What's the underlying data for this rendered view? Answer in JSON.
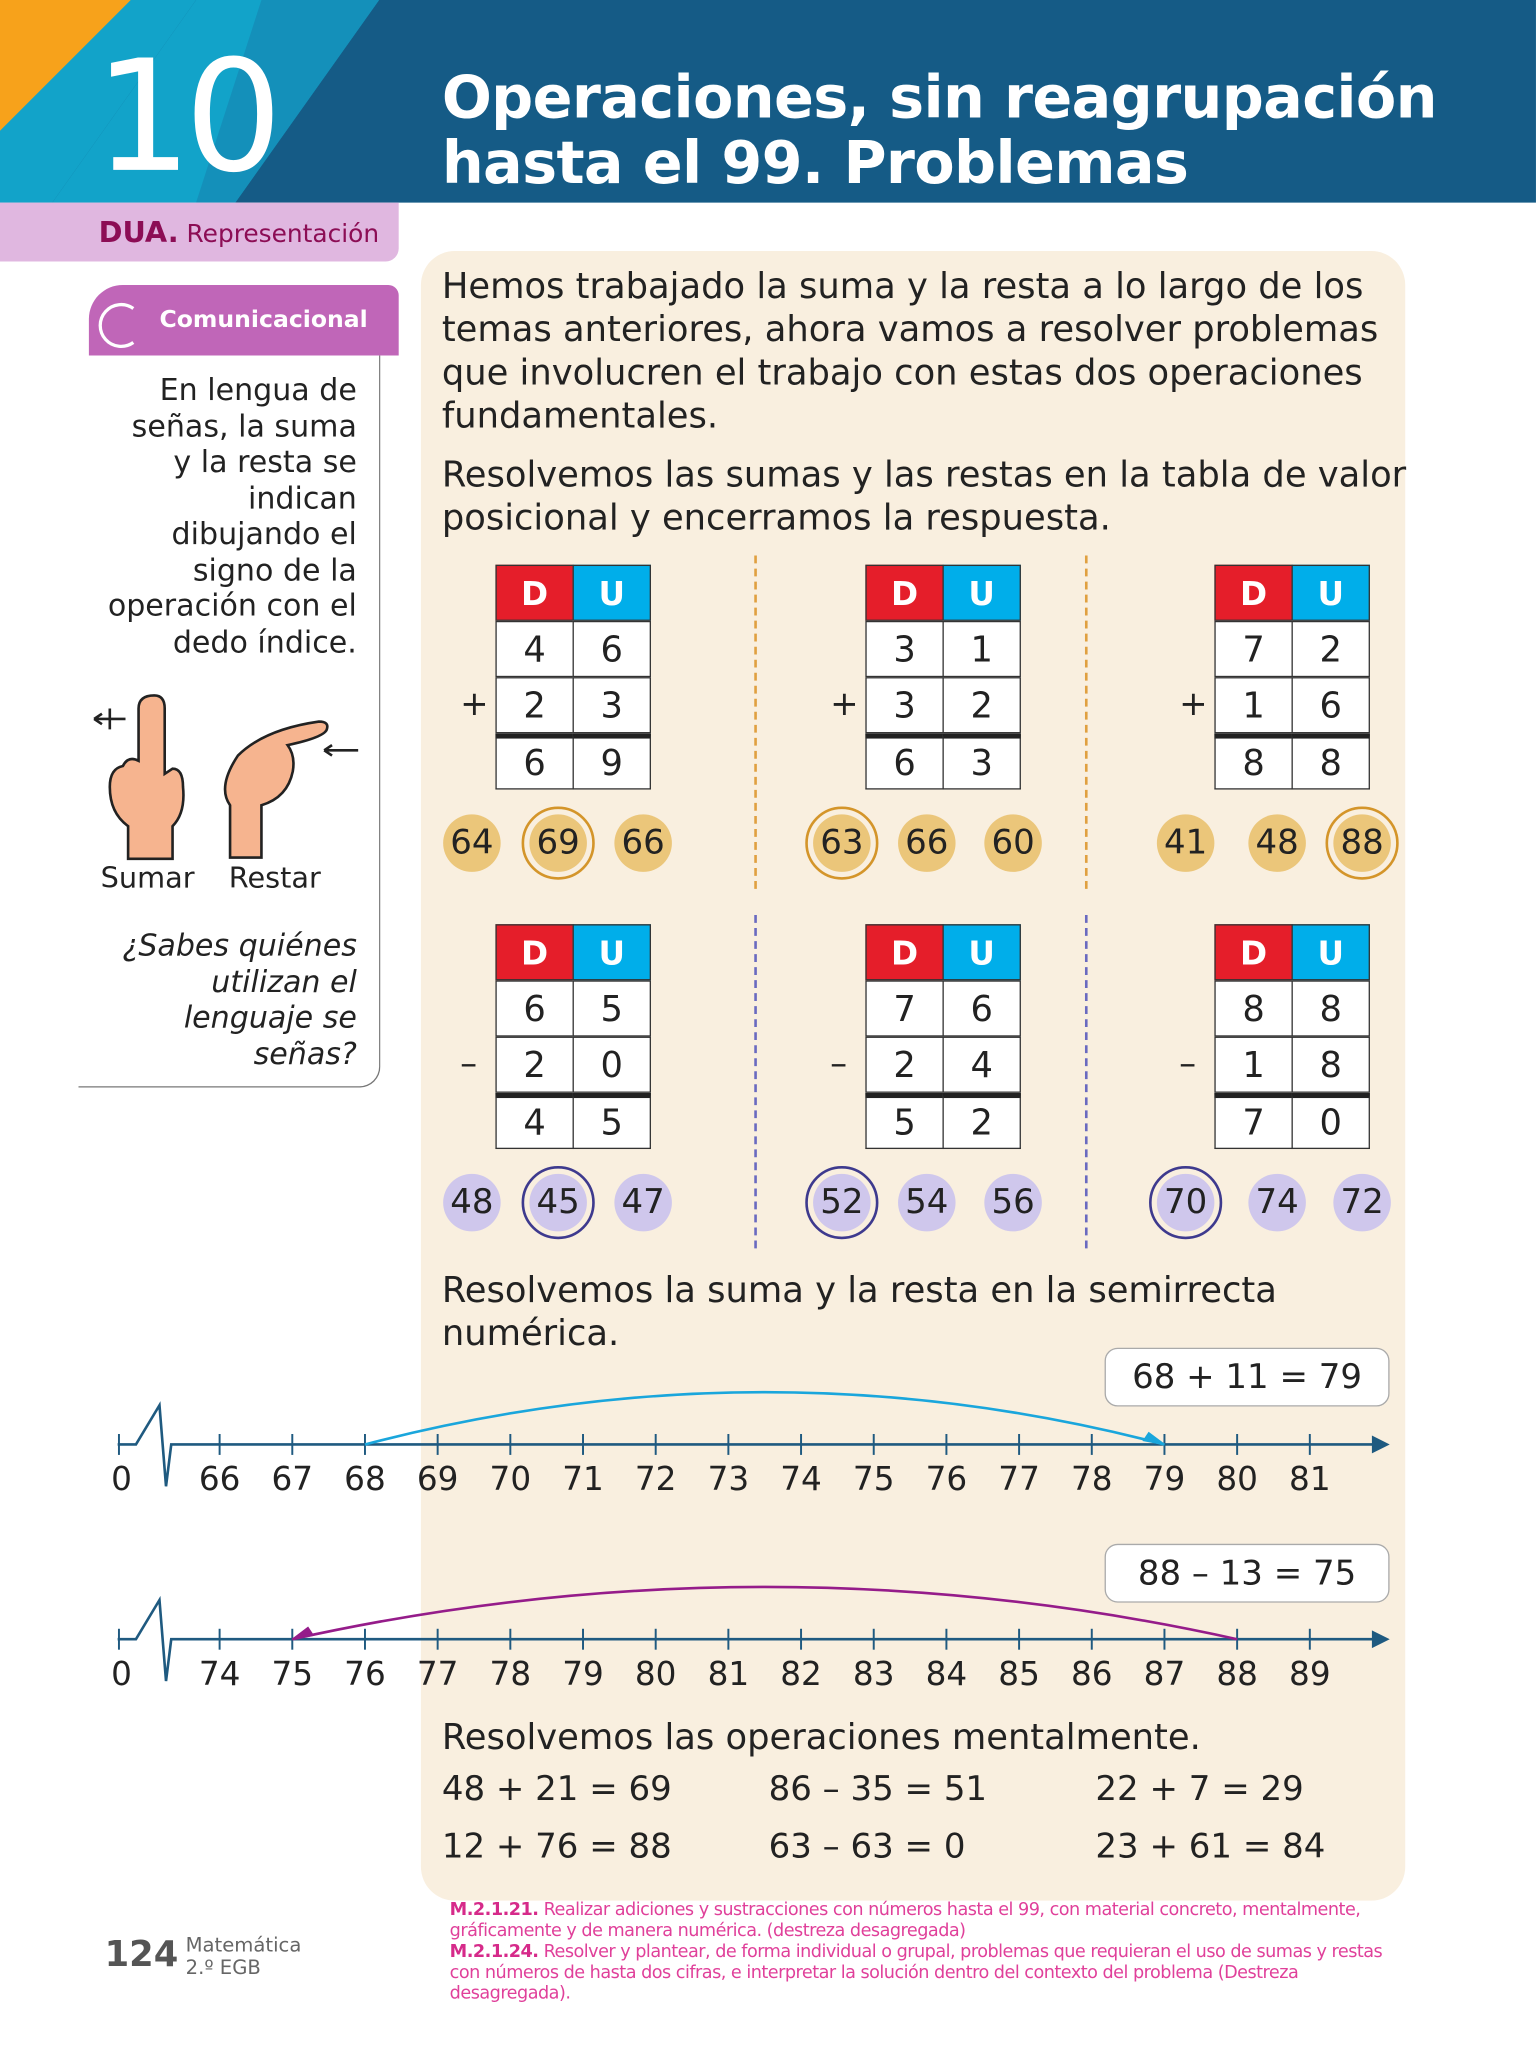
{
  "header": {
    "chapter_number": "10",
    "title_line1": "Operaciones, sin reagrupación",
    "title_line2": "hasta el 99. Problemas"
  },
  "dua": {
    "prefix": "DUA.",
    "label": "Representación"
  },
  "sidebar": {
    "tab_label": "Comunicacional",
    "text_lines": [
      "En lengua de",
      "señas, la suma",
      "y la resta se",
      "indican",
      "dibujando el",
      "signo de la",
      "operación con el",
      "dedo índice."
    ],
    "sign_labels": [
      "Sumar",
      "Restar"
    ],
    "question_lines": [
      "¿Sabes quiénes",
      "utilizan el",
      "lenguaje se",
      "señas?"
    ]
  },
  "intro": {
    "lines": [
      "Hemos trabajado la suma y la resta a lo largo de los",
      "temas anteriores, ahora vamos a resolver problemas",
      "que involucren el trabajo con estas dos operaciones",
      "fundamentales."
    ]
  },
  "instruction1": {
    "lines": [
      "Resolvemos las sumas y las restas en la tabla de valor",
      "posicional y encerramos la respuesta."
    ]
  },
  "table_headers": {
    "d": "D",
    "u": "U"
  },
  "operations": [
    {
      "op": "+",
      "a": [
        "4",
        "6"
      ],
      "b": [
        "2",
        "3"
      ],
      "r": [
        "6",
        "9"
      ],
      "options": [
        "64",
        "69",
        "66"
      ],
      "selected": 1
    },
    {
      "op": "+",
      "a": [
        "3",
        "1"
      ],
      "b": [
        "3",
        "2"
      ],
      "r": [
        "6",
        "3"
      ],
      "options": [
        "63",
        "66",
        "60"
      ],
      "selected": 0
    },
    {
      "op": "+",
      "a": [
        "7",
        "2"
      ],
      "b": [
        "1",
        "6"
      ],
      "r": [
        "8",
        "8"
      ],
      "options": [
        "41",
        "48",
        "88"
      ],
      "selected": 2
    },
    {
      "op": "–",
      "a": [
        "6",
        "5"
      ],
      "b": [
        "2",
        "0"
      ],
      "r": [
        "4",
        "5"
      ],
      "options": [
        "48",
        "45",
        "47"
      ],
      "selected": 1
    },
    {
      "op": "–",
      "a": [
        "7",
        "6"
      ],
      "b": [
        "2",
        "4"
      ],
      "r": [
        "5",
        "2"
      ],
      "options": [
        "52",
        "54",
        "56"
      ],
      "selected": 0
    },
    {
      "op": "–",
      "a": [
        "8",
        "8"
      ],
      "b": [
        "1",
        "8"
      ],
      "r": [
        "7",
        "0"
      ],
      "options": [
        "70",
        "74",
        "72"
      ],
      "selected": 0
    }
  ],
  "colors": {
    "add_chip": "#ebc67a",
    "add_ring": "#d4952a",
    "sub_chip": "#cfc7ec",
    "sub_ring": "#3e3a8e",
    "add_arc": "#1aa6dc",
    "sub_arc": "#951c8a",
    "axis": "#1f5a80"
  },
  "instruction2": {
    "lines": [
      "Resolvemos la suma y la resta en la semirrecta",
      "numérica."
    ]
  },
  "number_lines": [
    {
      "equation": "68 + 11 = 79",
      "start_label": "0",
      "ticks": [
        "66",
        "67",
        "68",
        "69",
        "70",
        "71",
        "72",
        "73",
        "74",
        "75",
        "76",
        "77",
        "78",
        "79",
        "80",
        "81"
      ],
      "from": "68",
      "to": "79"
    },
    {
      "equation": "88 – 13 = 75",
      "start_label": "0",
      "ticks": [
        "74",
        "75",
        "76",
        "77",
        "78",
        "79",
        "80",
        "81",
        "82",
        "83",
        "84",
        "85",
        "86",
        "87",
        "88",
        "89"
      ],
      "from": "88",
      "to": "75"
    }
  ],
  "mental": {
    "heading": "Resolvemos las operaciones mentalmente.",
    "items": [
      "48 + 21 = 69",
      "86 – 35 = 51",
      "22 + 7 = 29",
      "12 + 76 = 88",
      "63 – 63 = 0",
      "23 + 61 = 84"
    ]
  },
  "footer": {
    "page": "124",
    "subject": "Matemática",
    "grade": "2.º EGB",
    "standards": [
      {
        "code": "M.2.1.21.",
        "text": "Realizar adiciones y sustracciones con números hasta el 99, con material concreto, mentalmente, gráficamente y de manera numérica. (destreza desagregada)"
      },
      {
        "code": "M.2.1.24.",
        "text": "Resolver y plantear, de forma individual o grupal, problemas que requieran el uso de sumas y restas con números de hasta dos cifras, e interpretar la solución dentro del contexto del problema (Destreza desagregada)."
      }
    ]
  }
}
